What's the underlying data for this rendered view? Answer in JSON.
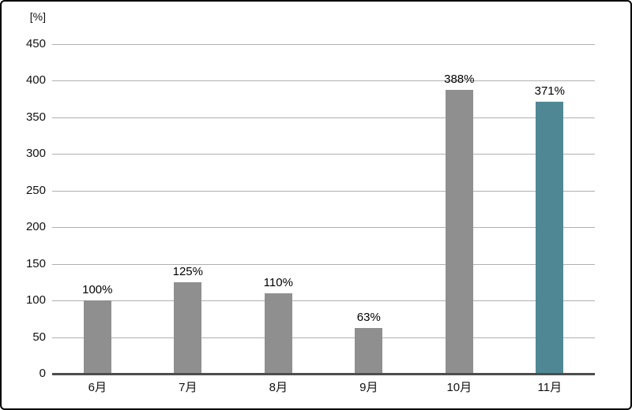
{
  "chart_data": {
    "type": "bar",
    "title": "",
    "unit_label": "[%]",
    "categories": [
      "6月",
      "7月",
      "8月",
      "9月",
      "10月",
      "11月"
    ],
    "values": [
      100,
      125,
      110,
      63,
      388,
      371
    ],
    "bar_labels": [
      "100%",
      "125%",
      "110%",
      "63%",
      "388%",
      "371%"
    ],
    "xlabel": "",
    "ylabel": "[%]",
    "ylim": [
      0,
      450
    ],
    "yticks": [
      0,
      50,
      100,
      150,
      200,
      250,
      300,
      350,
      400,
      450
    ],
    "grid": true,
    "legend": "none",
    "highlight_index": 5,
    "colors": {
      "bar_default": "#8f8f8f",
      "bar_highlight": "#4f8894",
      "gridline": "#b0b0b0",
      "baseline": "#4d4d4d",
      "text": "#111111",
      "frame_border": "#000000",
      "background": "#ffffff"
    }
  }
}
